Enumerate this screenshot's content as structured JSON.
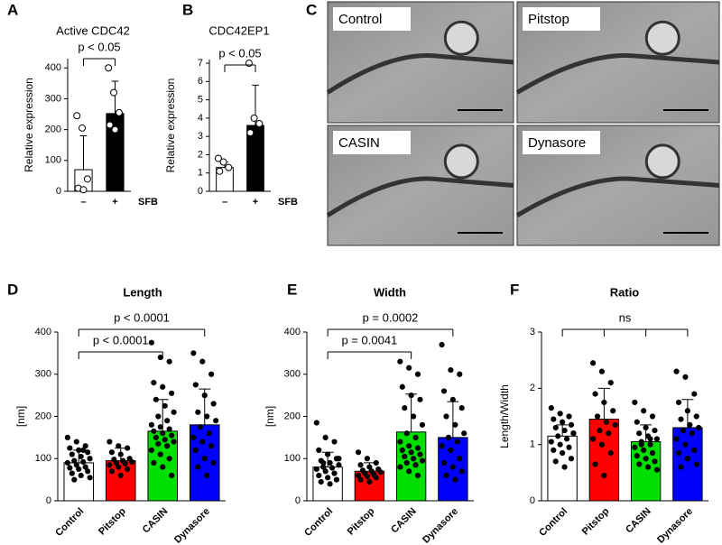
{
  "chart_data": [
    {
      "type": "bar",
      "panel": "A",
      "title": "Active CDC42",
      "y_label": "Relative expression",
      "x_label": "SFB",
      "categories": [
        "–",
        "+"
      ],
      "values": [
        70,
        252
      ],
      "errors": [
        110,
        105
      ],
      "points": [
        [
          245,
          205,
          40,
          10,
          5
        ],
        [
          400,
          320,
          255,
          215,
          200
        ]
      ],
      "colors": [
        "#ffffff",
        "#000000"
      ],
      "ylim": [
        0,
        430
      ],
      "yticks": [
        0,
        100,
        200,
        300,
        400
      ],
      "annotations": [
        "p < 0.05"
      ]
    },
    {
      "type": "bar",
      "panel": "B",
      "title": "CDC42EP1",
      "y_label": "Relative expression",
      "x_label": "SFB",
      "categories": [
        "–",
        "+"
      ],
      "values": [
        1.3,
        3.6
      ],
      "errors": [
        0.3,
        2.2
      ],
      "points": [
        [
          1.8,
          1.6,
          1.3,
          1.1
        ],
        [
          7.0,
          4.0,
          3.7,
          3.2
        ]
      ],
      "colors": [
        "#ffffff",
        "#000000"
      ],
      "ylim": [
        0,
        7.2
      ],
      "yticks": [
        0,
        1,
        2,
        3,
        4,
        5,
        6,
        7
      ],
      "annotations": [
        "p < 0.05"
      ]
    },
    {
      "type": "bar",
      "panel": "D",
      "title": "Length",
      "y_label": "[nm]",
      "categories": [
        "Control",
        "Pitstop",
        "CASIN",
        "Dynasore"
      ],
      "values": [
        90,
        95,
        165,
        180
      ],
      "errors": [
        30,
        30,
        75,
        85
      ],
      "points": [
        [
          150,
          140,
          130,
          125,
          120,
          115,
          110,
          105,
          100,
          95,
          92,
          90,
          85,
          80,
          78,
          75,
          70,
          65,
          60,
          55,
          50,
          120
        ],
        [
          140,
          130,
          125,
          115,
          110,
          100,
          98,
          95,
          92,
          90,
          88,
          85,
          80,
          75,
          70,
          60
        ],
        [
          375,
          340,
          330,
          280,
          270,
          255,
          240,
          225,
          210,
          200,
          190,
          180,
          175,
          170,
          165,
          160,
          155,
          150,
          145,
          140,
          135,
          130,
          120,
          110,
          100,
          90,
          80,
          60
        ],
        [
          350,
          330,
          300,
          275,
          250,
          230,
          210,
          200,
          190,
          175,
          160,
          150,
          140,
          130,
          120,
          100,
          90,
          80,
          60
        ]
      ],
      "colors": [
        "#ffffff",
        "#ff0000",
        "#00e000",
        "#0000ff"
      ],
      "ylim": [
        0,
        400
      ],
      "yticks": [
        0,
        100,
        200,
        300,
        400
      ],
      "annotations": [
        "p < 0.0001",
        "p < 0.0001"
      ]
    },
    {
      "type": "bar",
      "panel": "E",
      "title": "Width",
      "y_label": "[nm]",
      "categories": [
        "Control",
        "Pitstop",
        "CASIN",
        "Dynasore"
      ],
      "values": [
        80,
        70,
        163,
        150
      ],
      "errors": [
        35,
        20,
        90,
        85
      ],
      "points": [
        [
          185,
          150,
          140,
          120,
          110,
          100,
          95,
          90,
          85,
          80,
          78,
          75,
          70,
          65,
          60,
          55,
          50,
          45,
          40,
          100,
          90
        ],
        [
          115,
          100,
          90,
          85,
          80,
          75,
          72,
          70,
          68,
          65,
          62,
          60,
          58,
          55,
          50,
          45
        ],
        [
          330,
          315,
          300,
          270,
          250,
          240,
          220,
          200,
          180,
          160,
          150,
          140,
          130,
          125,
          120,
          115,
          110,
          105,
          100,
          95,
          90,
          85,
          80,
          70,
          60
        ],
        [
          370,
          310,
          300,
          260,
          240,
          220,
          200,
          180,
          160,
          150,
          140,
          130,
          120,
          100,
          90,
          80,
          70,
          60,
          50
        ]
      ],
      "colors": [
        "#ffffff",
        "#ff0000",
        "#00e000",
        "#0000ff"
      ],
      "ylim": [
        0,
        400
      ],
      "yticks": [
        0,
        100,
        200,
        300,
        400
      ],
      "annotations": [
        "p = 0.0002",
        "p = 0.0041"
      ]
    },
    {
      "type": "bar",
      "panel": "F",
      "title": "Ratio",
      "y_label": "Length/Width",
      "categories": [
        "Control",
        "Pitstop",
        "CASIN",
        "Dynasore"
      ],
      "values": [
        1.15,
        1.45,
        1.05,
        1.3
      ],
      "errors": [
        0.2,
        0.55,
        0.3,
        0.5
      ],
      "points": [
        [
          1.65,
          1.55,
          1.5,
          1.45,
          1.4,
          1.35,
          1.3,
          1.25,
          1.2,
          1.15,
          1.1,
          1.05,
          1.0,
          0.95,
          0.9,
          0.85,
          0.75,
          0.7,
          0.6,
          1.2
        ],
        [
          2.45,
          2.3,
          2.1,
          1.9,
          1.75,
          1.6,
          1.5,
          1.4,
          1.35,
          1.25,
          1.2,
          1.1,
          1.0,
          0.85,
          0.65,
          0.45
        ],
        [
          1.75,
          1.6,
          1.5,
          1.4,
          1.3,
          1.25,
          1.2,
          1.15,
          1.1,
          1.05,
          1.0,
          0.95,
          0.9,
          0.85,
          0.8,
          0.75,
          0.7,
          0.65,
          0.6,
          0.55,
          1.0,
          1.1
        ],
        [
          2.3,
          2.2,
          1.9,
          1.75,
          1.6,
          1.5,
          1.45,
          1.35,
          1.3,
          1.25,
          1.2,
          1.1,
          1.0,
          0.9,
          0.85,
          0.75,
          0.65,
          0.6
        ]
      ],
      "colors": [
        "#ffffff",
        "#ff0000",
        "#00e000",
        "#0000ff"
      ],
      "ylim": [
        0,
        3
      ],
      "yticks": [
        0,
        1,
        2,
        3
      ],
      "annotations": [
        "ns"
      ]
    }
  ],
  "micrographs": {
    "panel": "C",
    "labels": [
      "Control",
      "Pitstop",
      "CASIN",
      "Dynasore"
    ]
  }
}
